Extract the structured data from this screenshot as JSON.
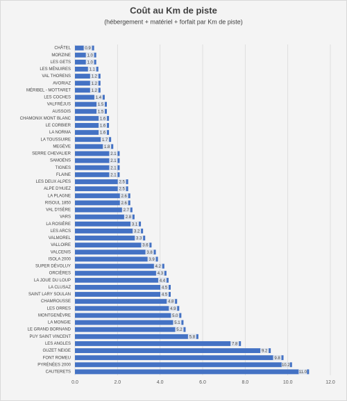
{
  "chart_data": {
    "type": "hbar",
    "title": "Coût au Km de piste",
    "subtitle": "(hébergement + matériel + forfait  par Km de piste)",
    "categories": [
      "CHÂTEL",
      "MORZINE",
      "LES GETS",
      "LES MÉNUIRES",
      "VAL THORENS",
      "AVORIAZ",
      "MÉRIBEL - MOTTARET",
      "LES COCHES",
      "VALFRÉJUS",
      "AUSSOIS",
      "CHAMONIX MONT BLANC",
      "LE CORBIER",
      "LA NORMA",
      "LA TOUSSUIRE",
      "MEGÈVE",
      "SERRE CHEVALIER",
      "SAMOËNS",
      "TIGNES",
      "FLAINE",
      "LES DEUX ALPES",
      "ALPE D'HUEZ",
      "LA PLAGNE",
      "RISOUL 1850",
      "VAL D'ISÈRE",
      "VARS",
      "LA ROSIÈRE",
      "LES ARCS",
      "VALMOREL",
      "VALLOIRE",
      "VALCENIS",
      "ISOLA 2000",
      "SUPER DÉVOLUY",
      "ORCIÈRES",
      "LA JOUE DU LOUP",
      "LA CLUSAZ",
      "SAINT LARY SOULAN",
      "CHAMROUSSE",
      "LES ORRES",
      "MONTGENÈVRE",
      "LA MONGIE",
      "LE GRAND BORNAND",
      "PUY SAINT VINCENT",
      "LES ANGLES",
      "GUZET NEIGE",
      "FONT ROMEU",
      "PYRÉNÉES 2000",
      "CAUTERETS"
    ],
    "values": [
      0.9,
      1.0,
      1.0,
      1.1,
      1.2,
      1.2,
      1.2,
      1.4,
      1.5,
      1.5,
      1.6,
      1.6,
      1.6,
      1.7,
      1.8,
      2.1,
      2.1,
      2.1,
      2.1,
      2.5,
      2.5,
      2.6,
      2.6,
      2.7,
      2.8,
      3.1,
      3.2,
      3.3,
      3.6,
      3.8,
      3.9,
      4.2,
      4.3,
      4.4,
      4.5,
      4.5,
      4.8,
      4.9,
      5.0,
      5.1,
      5.2,
      5.8,
      7.8,
      9.2,
      9.8,
      10.2,
      11.0
    ],
    "value_labels": [
      "0.9",
      "1.0",
      "1.0",
      "1.1",
      "1.2",
      "1.2",
      "1.2",
      "1.4",
      "1.5",
      "1.5",
      "1.6",
      "1.6",
      "1.6",
      "1.7",
      "1.8",
      "2.1",
      "2.1",
      "2.1",
      "2.1",
      "2.5",
      "2.5",
      "2.6",
      "2.6",
      "2.7",
      "2.8",
      "3.1",
      "3.2",
      "3.3",
      "3.6",
      "3.8",
      "3.9",
      "4.2",
      "4.3",
      "4.4",
      "4.5",
      "4.5",
      "4.8",
      "4.9",
      "5.0",
      "5.1",
      "5.2",
      "5.8",
      "7.8",
      "9.2",
      "9.8",
      "10.2",
      "11.0"
    ],
    "color": "#4472c4",
    "xlim": [
      0,
      12
    ],
    "xticks": [
      {
        "value": 0,
        "label": "0.0"
      },
      {
        "value": 2,
        "label": "2.0"
      },
      {
        "value": 4,
        "label": "4.0"
      },
      {
        "value": 6,
        "label": "6.0"
      },
      {
        "value": 8,
        "label": "8.0"
      },
      {
        "value": 10,
        "label": "10.0"
      },
      {
        "value": 12,
        "label": "12.0"
      }
    ],
    "grid": true
  }
}
